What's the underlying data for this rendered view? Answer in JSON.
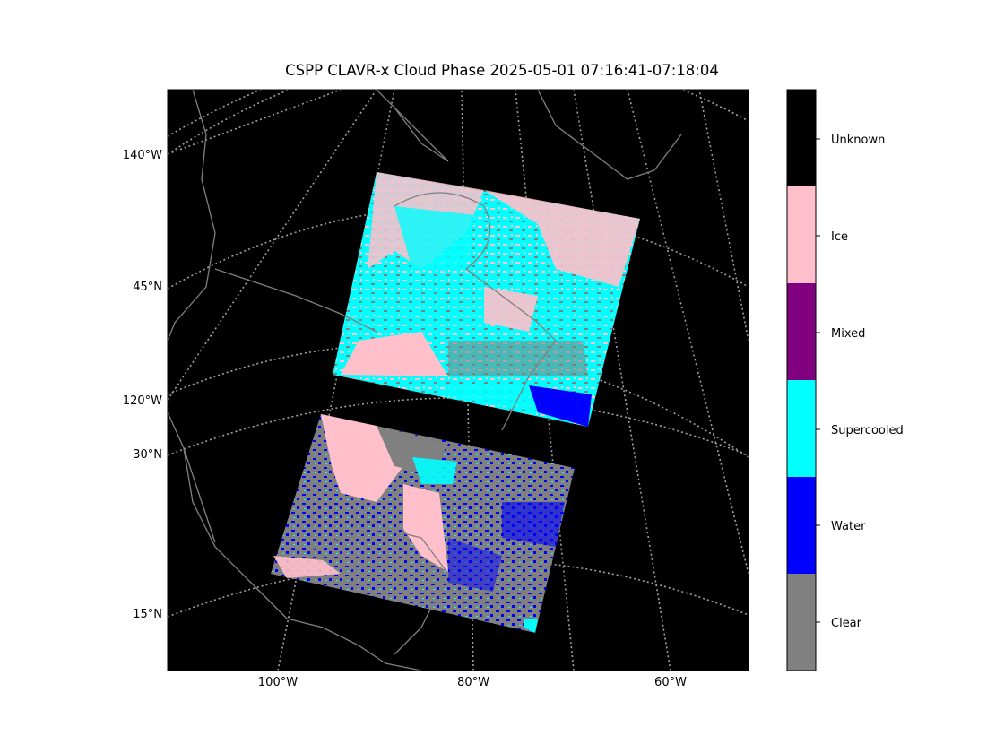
{
  "title": "CSPP CLAVR-x Cloud Phase 2025-05-01 07:16:41-07:18:04",
  "map": {
    "left_labels": [
      "140°W",
      "45°N",
      "120°W",
      "30°N",
      "15°N"
    ],
    "bottom_labels": [
      "100°W",
      "80°W",
      "60°W"
    ]
  },
  "colorbar": {
    "classes": [
      {
        "label": "Unknown",
        "color": "#000000"
      },
      {
        "label": "Ice",
        "color": "#ffc0cb"
      },
      {
        "label": "Mixed",
        "color": "#800080"
      },
      {
        "label": "Supercooled",
        "color": "#00ffff"
      },
      {
        "label": "Water",
        "color": "#0000ff"
      },
      {
        "label": "Clear",
        "color": "#808080"
      }
    ]
  },
  "colors": {
    "background": "#000000",
    "coastline": "#808080",
    "gridline": "#a0a0a0"
  }
}
